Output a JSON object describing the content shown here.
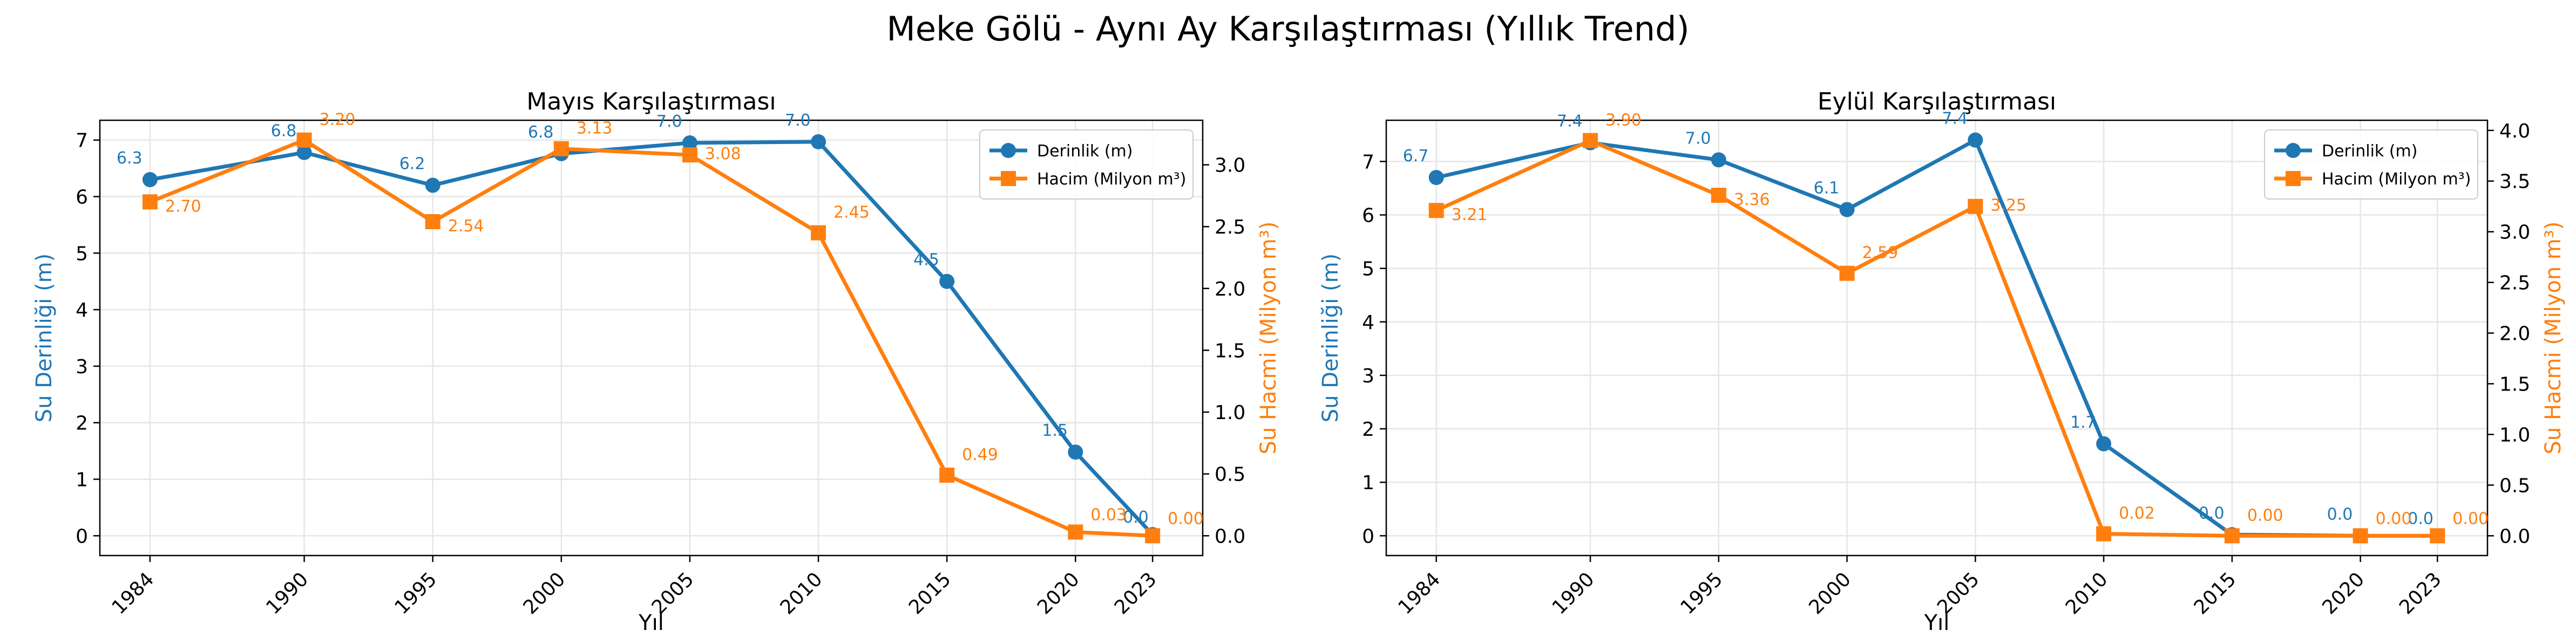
{
  "figure": {
    "title": "Meke Gölü - Aynı Ay Karşılaştırması (Yıllık Trend)"
  },
  "colors": {
    "depth": "#1f77b4",
    "volume": "#ff7f0e",
    "grid": "#e6e6e6",
    "axis": "#000000"
  },
  "chart_data": [
    {
      "type": "line",
      "title": "Mayıs Karşılaştırması",
      "xlabel": "Yıl",
      "ylabel_left": "Su Derinliği (m)",
      "ylabel_right": "Su Hacmi (Milyon m³)",
      "x": [
        1984,
        1990,
        1995,
        2000,
        2005,
        2010,
        2015,
        2020,
        2023
      ],
      "xticks": [
        "1984",
        "1990",
        "1995",
        "2000",
        "2005",
        "2010",
        "2015",
        "2020",
        "2023"
      ],
      "xlim": [
        1982.05,
        2024.95
      ],
      "ylim_left": [
        -0.35,
        7.35
      ],
      "ylim_right": [
        -0.16,
        3.36
      ],
      "yticks_left": [
        0,
        1,
        2,
        3,
        4,
        5,
        6,
        7
      ],
      "yticks_right": [
        0.0,
        0.5,
        1.0,
        1.5,
        2.0,
        2.5,
        3.0
      ],
      "grid": true,
      "legend": "top-right",
      "series": [
        {
          "name": "Derinlik (m)",
          "axis": "left",
          "marker": "circle",
          "values": [
            6.3,
            6.78,
            6.2,
            6.76,
            6.95,
            6.97,
            4.5,
            1.48,
            0.02
          ],
          "labels": [
            "6.3",
            "6.8",
            "6.2",
            "6.8",
            "7.0",
            "7.0",
            "4.5",
            "1.5",
            "0.0"
          ]
        },
        {
          "name": "Hacim (Milyon m³)",
          "axis": "right",
          "marker": "square",
          "values": [
            2.7,
            3.2,
            2.54,
            3.13,
            3.08,
            2.45,
            0.49,
            0.03,
            0.0
          ],
          "labels": [
            "2.70",
            "3.20",
            "2.54",
            "3.13",
            "3.08",
            "2.45",
            "0.49",
            "0.03",
            "0.00"
          ]
        }
      ]
    },
    {
      "type": "line",
      "title": "Eylül Karşılaştırması",
      "xlabel": "Yıl",
      "ylabel_left": "Su Derinliği (m)",
      "ylabel_right": "Su Hacmi (Milyon m³)",
      "x": [
        1984,
        1990,
        1995,
        2000,
        2005,
        2010,
        2015,
        2020,
        2023
      ],
      "xticks": [
        "1984",
        "1990",
        "1995",
        "2000",
        "2005",
        "2010",
        "2015",
        "2020",
        "2023"
      ],
      "xlim": [
        1982.05,
        2024.95
      ],
      "ylim_left": [
        -0.37,
        7.77
      ],
      "ylim_right": [
        -0.195,
        4.1
      ],
      "yticks_left": [
        0,
        1,
        2,
        3,
        4,
        5,
        6,
        7
      ],
      "yticks_right": [
        0.0,
        0.5,
        1.0,
        1.5,
        2.0,
        2.5,
        3.0,
        3.5,
        4.0
      ],
      "grid": true,
      "legend": "top-right",
      "series": [
        {
          "name": "Derinlik (m)",
          "axis": "left",
          "marker": "circle",
          "values": [
            6.7,
            7.35,
            7.03,
            6.1,
            7.4,
            1.72,
            0.02,
            0.0,
            0.0
          ],
          "labels": [
            "6.7",
            "7.4",
            "7.0",
            "6.1",
            "7.4",
            "1.7",
            "0.0",
            "0.0",
            "0.0"
          ]
        },
        {
          "name": "Hacim (Milyon m³)",
          "axis": "right",
          "marker": "square",
          "values": [
            3.21,
            3.9,
            3.36,
            2.59,
            3.25,
            0.02,
            0.0,
            0.0,
            0.0
          ],
          "labels": [
            "3.21",
            "3.90",
            "3.36",
            "2.59",
            "3.25",
            "0.02",
            "0.00",
            "0.00",
            "0.00"
          ]
        }
      ]
    }
  ]
}
